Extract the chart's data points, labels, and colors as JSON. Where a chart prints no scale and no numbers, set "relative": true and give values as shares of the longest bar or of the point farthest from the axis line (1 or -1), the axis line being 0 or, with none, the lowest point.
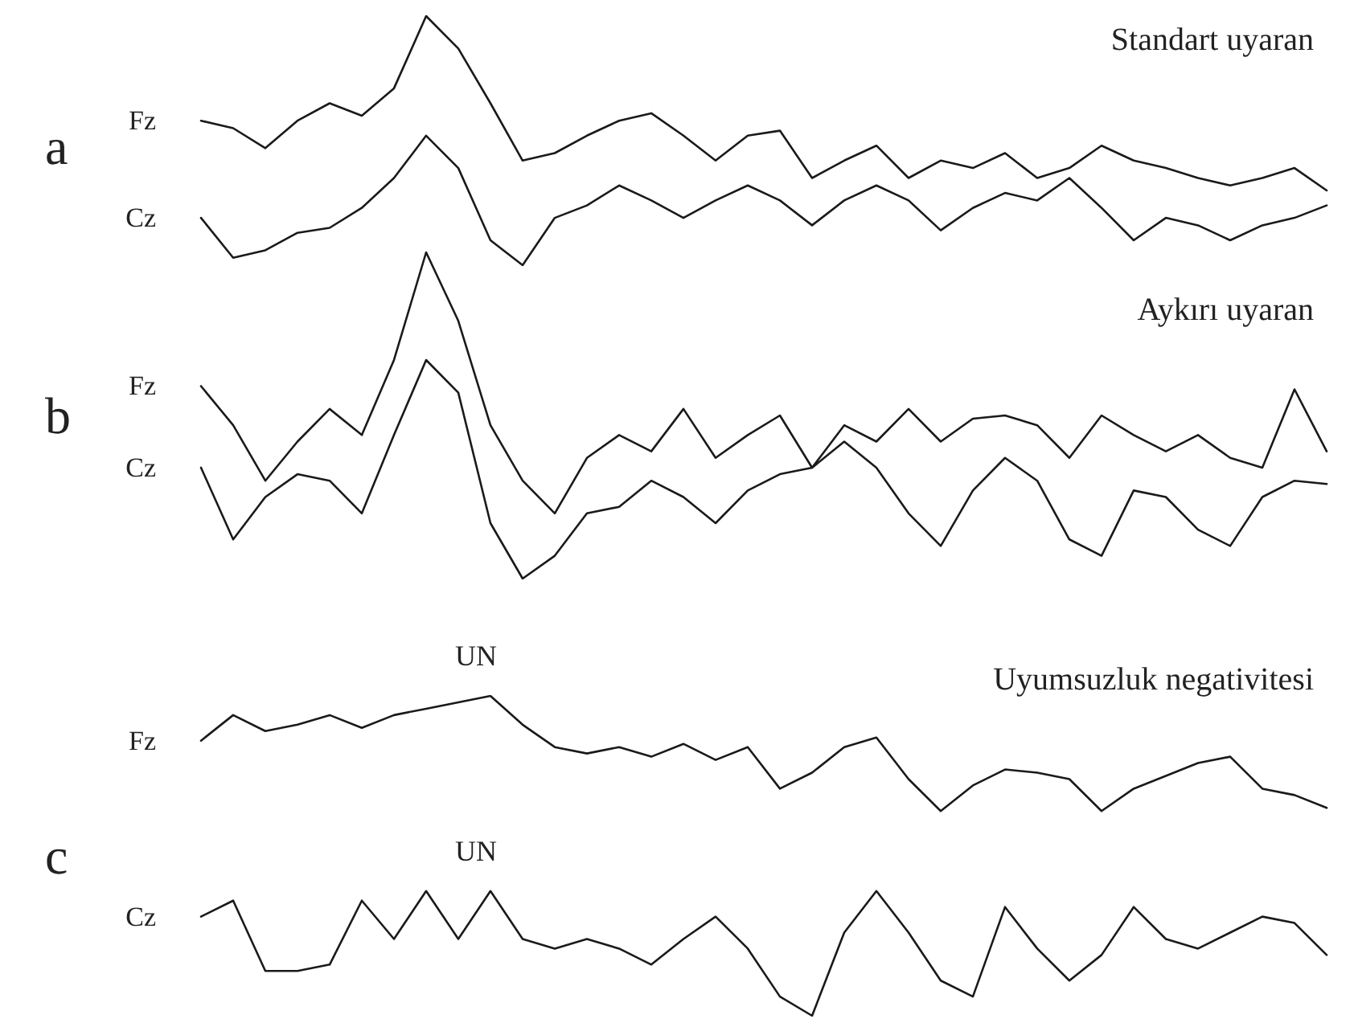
{
  "chart_data": [
    {
      "type": "line",
      "title": "Standart uyaran",
      "relative": true,
      "marker": "none",
      "line_style": "solid",
      "grid": false,
      "legend": false,
      "annotations": [
        "a"
      ],
      "categories": [
        null,
        null,
        null,
        null,
        null,
        null,
        null,
        null,
        null,
        null,
        null,
        null,
        null,
        null,
        null,
        null,
        null,
        null,
        null,
        null,
        null,
        null,
        null,
        null,
        null,
        null,
        null,
        null,
        null,
        null,
        null,
        null,
        null,
        null,
        null,
        null
      ],
      "series": [
        {
          "name": "Fz",
          "color": "#1a1a1a",
          "values": [
            0.58,
            0.55,
            0.47,
            0.58,
            0.65,
            0.6,
            0.71,
            1,
            0.87,
            0.65,
            0.42,
            0.45,
            0.52,
            0.58,
            0.61,
            0.52,
            0.42,
            0.52,
            0.54,
            0.35,
            0.42,
            0.48,
            0.35,
            0.42,
            0.39,
            0.45,
            0.35,
            0.39,
            0.48,
            0.42,
            0.39,
            0.35,
            0.32,
            0.35,
            0.39,
            0.3
          ]
        },
        {
          "name": "Cz",
          "color": "#1a1a1a",
          "values": [
            0.19,
            0.03,
            0.06,
            0.13,
            0.15,
            0.23,
            0.35,
            0.52,
            0.39,
            0.1,
            0,
            0.19,
            0.24,
            0.32,
            0.26,
            0.19,
            0.26,
            0.32,
            0.26,
            0.16,
            0.26,
            0.32,
            0.26,
            0.14,
            0.23,
            0.29,
            0.26,
            0.35,
            0.23,
            0.1,
            0.19,
            0.16,
            0.1,
            0.16,
            0.19,
            0.24
          ]
        }
      ]
    },
    {
      "type": "line",
      "title": "Aykırı uyaran",
      "relative": true,
      "marker": "none",
      "line_style": "solid",
      "grid": false,
      "legend": false,
      "annotations": [
        "b"
      ],
      "categories": [
        null,
        null,
        null,
        null,
        null,
        null,
        null,
        null,
        null,
        null,
        null,
        null,
        null,
        null,
        null,
        null,
        null,
        null,
        null,
        null,
        null,
        null,
        null,
        null,
        null,
        null,
        null,
        null,
        null,
        null,
        null,
        null,
        null,
        null,
        null,
        null
      ],
      "series": [
        {
          "name": "Fz",
          "color": "#1a1a1a",
          "values": [
            0.59,
            0.47,
            0.3,
            0.42,
            0.52,
            0.44,
            0.67,
            1,
            0.79,
            0.47,
            0.3,
            0.2,
            0.37,
            0.44,
            0.39,
            0.52,
            0.37,
            0.44,
            0.5,
            0.34,
            0.47,
            0.42,
            0.52,
            0.42,
            0.49,
            0.5,
            0.47,
            0.37,
            0.5,
            0.44,
            0.39,
            0.44,
            0.37,
            0.34,
            0.58,
            0.39
          ]
        },
        {
          "name": "Cz",
          "color": "#1a1a1a",
          "values": [
            0.34,
            0.12,
            0.25,
            0.32,
            0.3,
            0.2,
            0.44,
            0.67,
            0.57,
            0.17,
            0,
            0.07,
            0.2,
            0.22,
            0.3,
            0.25,
            0.17,
            0.27,
            0.32,
            0.34,
            0.42,
            0.34,
            0.2,
            0.1,
            0.27,
            0.37,
            0.3,
            0.12,
            0.07,
            0.27,
            0.25,
            0.15,
            0.1,
            0.25,
            0.3,
            0.29
          ]
        }
      ]
    },
    {
      "type": "line",
      "title": "Uyumsuzluk negativitesi",
      "relative": true,
      "marker": "none",
      "line_style": "solid",
      "grid": false,
      "legend": false,
      "annotations": [
        "c",
        "UN",
        "UN"
      ],
      "categories": [
        null,
        null,
        null,
        null,
        null,
        null,
        null,
        null,
        null,
        null,
        null,
        null,
        null,
        null,
        null,
        null,
        null,
        null,
        null,
        null,
        null,
        null,
        null,
        null,
        null,
        null,
        null,
        null,
        null,
        null,
        null,
        null,
        null,
        null,
        null,
        null
      ],
      "series": [
        {
          "name": "Fz",
          "color": "#1a1a1a",
          "values": [
            0.86,
            0.94,
            0.89,
            0.91,
            0.94,
            0.9,
            0.94,
            0.96,
            0.98,
            1,
            0.91,
            0.84,
            0.82,
            0.84,
            0.81,
            0.85,
            0.8,
            0.84,
            0.71,
            0.76,
            0.84,
            0.87,
            0.74,
            0.64,
            0.72,
            0.77,
            0.76,
            0.74,
            0.64,
            0.71,
            0.75,
            0.79,
            0.81,
            0.71,
            0.69,
            0.65
          ]
        },
        {
          "name": "Cz",
          "color": "#1a1a1a",
          "values": [
            0.31,
            0.36,
            0.14,
            0.14,
            0.16,
            0.36,
            0.24,
            0.39,
            0.24,
            0.39,
            0.24,
            0.21,
            0.24,
            0.21,
            0.16,
            0.24,
            0.31,
            0.21,
            0.06,
            0,
            0.26,
            0.39,
            0.26,
            0.11,
            0.06,
            0.34,
            0.21,
            0.11,
            0.19,
            0.34,
            0.24,
            0.21,
            0.26,
            0.31,
            0.29,
            0.19
          ]
        }
      ]
    }
  ]
}
